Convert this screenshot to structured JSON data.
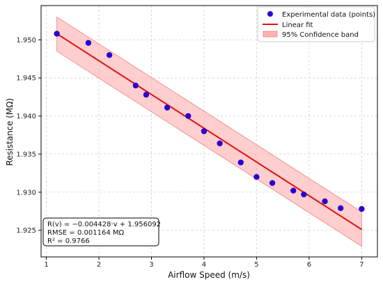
{
  "chart_data": {
    "type": "scatter",
    "xlabel": "Airflow Speed (m/s)",
    "ylabel": "Resistance (MΩ)",
    "xlim": [
      0.9,
      7.3
    ],
    "ylim": [
      1.9215,
      1.9545
    ],
    "x_ticks": [
      "1",
      "2",
      "3",
      "4",
      "5",
      "6",
      "7"
    ],
    "y_ticks": [
      "1.925",
      "1.930",
      "1.935",
      "1.940",
      "1.945",
      "1.950"
    ],
    "grid": true,
    "legend_position": "top-right",
    "legend": {
      "points": "Experimental data (points)",
      "fit": "Linear fit",
      "band": "95% Confidence band"
    },
    "series": [
      {
        "name": "Experimental data (points)",
        "kind": "scatter",
        "color": "#2a00d4",
        "x": [
          1.2,
          1.8,
          2.2,
          2.7,
          2.9,
          3.3,
          3.7,
          4.0,
          4.3,
          4.7,
          5.0,
          5.3,
          5.7,
          5.9,
          6.3,
          6.6,
          7.0
        ],
        "y": [
          1.9508,
          1.9496,
          1.948,
          1.944,
          1.9428,
          1.9411,
          1.94,
          1.938,
          1.9364,
          1.9339,
          1.932,
          1.9312,
          1.9302,
          1.9297,
          1.9288,
          1.9279,
          1.9278
        ]
      },
      {
        "name": "Linear fit",
        "kind": "line",
        "color": "#e01010",
        "x": [
          1.2,
          7.0
        ],
        "y": [
          1.9508,
          1.9251
        ]
      },
      {
        "name": "95% Confidence band",
        "kind": "band",
        "color": "#ffb3b3",
        "x": [
          1.2,
          7.0
        ],
        "upper": [
          1.953,
          1.9274
        ],
        "lower": [
          1.9485,
          1.9229
        ]
      }
    ],
    "annotation": {
      "line1": "R(v) = −0.004428·v + 1.956092",
      "line2": "RMSE = 0.001164 MΩ",
      "line3": "R² = 0.9766"
    }
  }
}
